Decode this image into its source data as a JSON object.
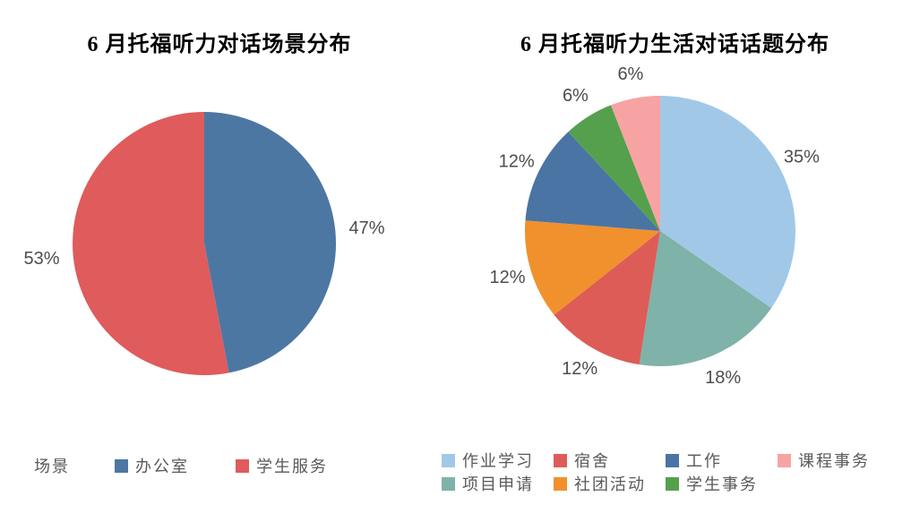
{
  "page": {
    "background_color": "#ffffff",
    "text_color": "#595959",
    "label_color": "#4d4d4d"
  },
  "chart_data": [
    {
      "type": "pie",
      "title": "6 月托福听力对话场景分布",
      "series_name": "场景",
      "start_angle_deg": 0,
      "direction": "clockwise",
      "legend_position": "bottom-left",
      "legend_order": [
        0,
        1
      ],
      "slices": [
        {
          "label": "办公室",
          "value": 47,
          "percent_label": "47%",
          "color": "#4d77a3"
        },
        {
          "label": "学生服务",
          "value": 53,
          "percent_label": "53%",
          "color": "#df5b5c"
        }
      ]
    },
    {
      "type": "pie",
      "title": "6 月托福听力生活对话话题分布",
      "start_angle_deg": 0,
      "direction": "clockwise",
      "legend_position": "bottom",
      "legend_columns": 4,
      "legend_order": [
        0,
        2,
        4,
        6,
        1,
        3,
        5
      ],
      "slices": [
        {
          "label": "作业学习",
          "value": 35,
          "percent_label": "35%",
          "color": "#a2c8e8"
        },
        {
          "label": "项目申请",
          "value": 18,
          "percent_label": "18%",
          "color": "#7fb2a8"
        },
        {
          "label": "宿舍",
          "value": 12,
          "percent_label": "12%",
          "color": "#dd5c57"
        },
        {
          "label": "社团活动",
          "value": 12,
          "percent_label": "12%",
          "color": "#f0912d"
        },
        {
          "label": "工作",
          "value": 12,
          "percent_label": "12%",
          "color": "#4a74a4"
        },
        {
          "label": "学生事务",
          "value": 6,
          "percent_label": "6%",
          "color": "#55a04d"
        },
        {
          "label": "课程事务",
          "value": 6,
          "percent_label": "6%",
          "color": "#f8a3a3"
        }
      ]
    }
  ]
}
